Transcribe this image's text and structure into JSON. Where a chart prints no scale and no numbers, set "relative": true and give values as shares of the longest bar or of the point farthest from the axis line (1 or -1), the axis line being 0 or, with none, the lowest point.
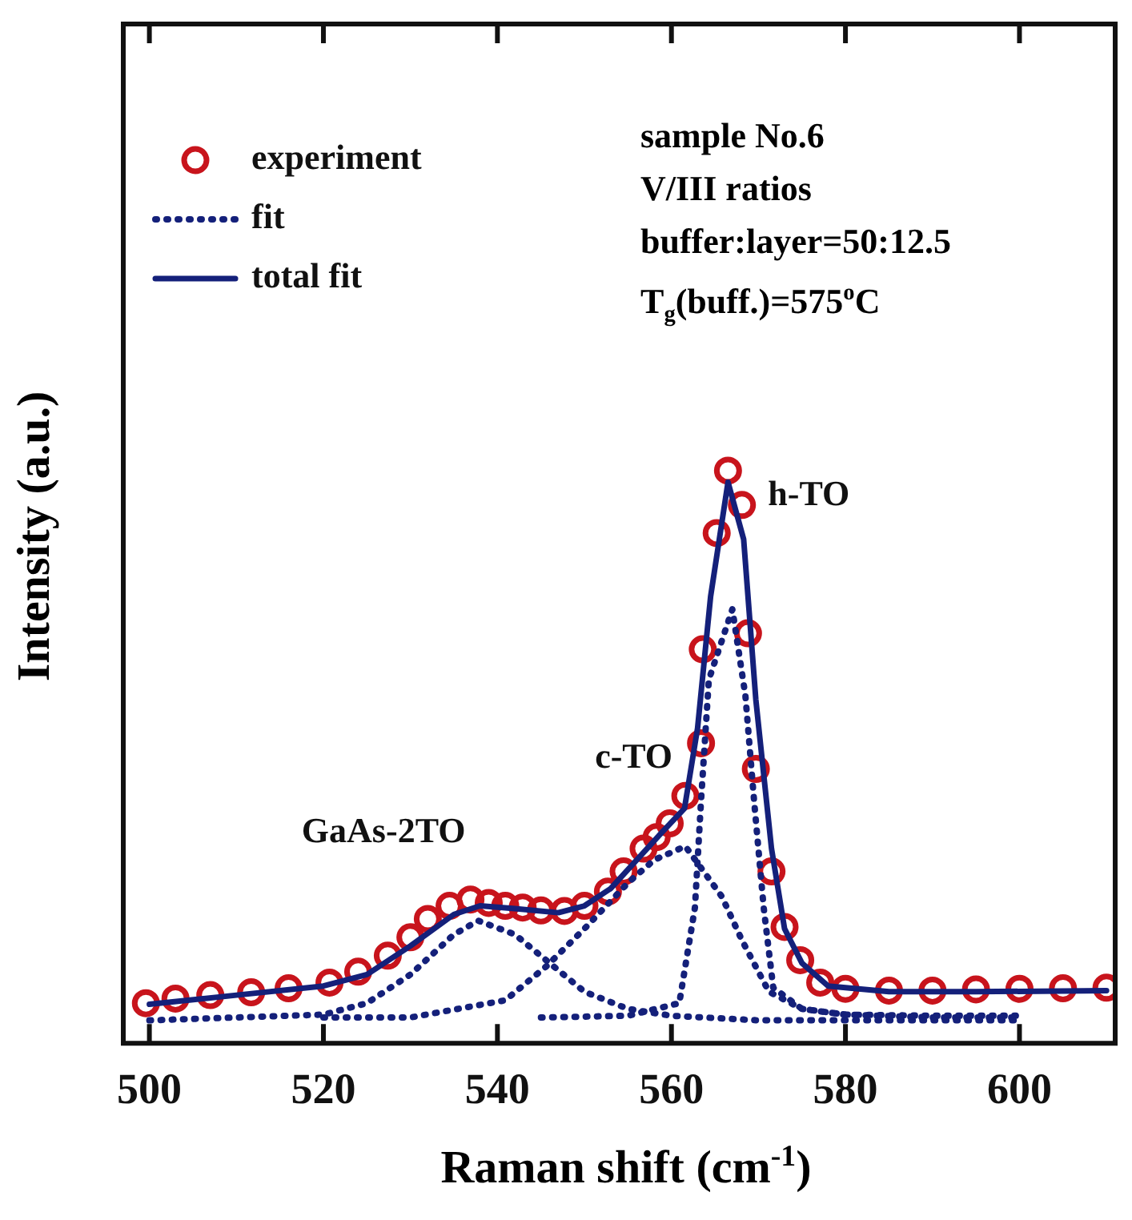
{
  "chart_data": {
    "type": "line",
    "xlabel": "Raman shift (cm$^{-1}$)",
    "ylabel": "Intensity (a.u.)",
    "relative": true,
    "xlim": [
      497,
      611
    ],
    "xticks": [
      500,
      520,
      540,
      560,
      580,
      600
    ],
    "grid": false,
    "legend": "top left",
    "annotations": [
      "sample No.6",
      "V/III ratios",
      "buffer:layer=50:12.5",
      "T$_{g}$(buff.)=575$^{o}$C",
      {
        "text": "GaAs-2TO",
        "x": 537.8,
        "y": 0.214
      },
      {
        "text": "c-TO",
        "x": 561.6,
        "y": 0.344
      },
      {
        "text": "h-TO",
        "x": 566.5,
        "y": 1
      }
    ],
    "series": [
      {
        "name": "experiment",
        "type": "scatter",
        "marker": "circle",
        "color": "#c8141c",
        "x": [
          499.6,
          503,
          507,
          511.7,
          516,
          520.7,
          524,
          527.4,
          530,
          532,
          534.5,
          536.9,
          539,
          540.9,
          542.9,
          545,
          547.7,
          550,
          552.7,
          554.5,
          556.8,
          558.3,
          559.8,
          561.6,
          563.4,
          563.6,
          565.2,
          566.5,
          568.1,
          568.8,
          569.7,
          571.5,
          573,
          574.8,
          577.1,
          580,
          585,
          590,
          595,
          600,
          605,
          610
        ],
        "values": [
          0.07,
          0.078,
          0.084,
          0.089,
          0.096,
          0.106,
          0.125,
          0.153,
          0.185,
          0.217,
          0.24,
          0.251,
          0.245,
          0.24,
          0.237,
          0.232,
          0.231,
          0.24,
          0.265,
          0.3,
          0.34,
          0.36,
          0.384,
          0.432,
          0.524,
          0.688,
          0.891,
          1,
          0.94,
          0.716,
          0.479,
          0.3,
          0.203,
          0.145,
          0.106,
          0.095,
          0.092,
          0.092,
          0.094,
          0.095,
          0.096,
          0.097
        ]
      },
      {
        "name": "fit",
        "line_style": "dotted",
        "marker": "none",
        "color": "#14207a",
        "x": [
          500,
          510,
          520,
          525,
          530,
          535,
          537.8,
          542,
          546,
          550,
          555,
          560,
          570,
          580,
          590,
          600
        ],
        "values": [
          0.04,
          0.045,
          0.05,
          0.07,
          0.12,
          0.19,
          0.214,
          0.19,
          0.14,
          0.09,
          0.06,
          0.048,
          0.04,
          0.04,
          0.04,
          0.04
        ]
      },
      {
        "line_style": "dotted",
        "marker": "none",
        "color": "#14207a",
        "x": [
          520,
          530,
          540.9,
          545.6,
          550,
          555,
          558,
          561.6,
          565.8,
          568.1,
          571.2,
          575,
          580,
          590,
          600
        ],
        "values": [
          0.045,
          0.045,
          0.075,
          0.134,
          0.2,
          0.28,
          0.32,
          0.344,
          0.256,
          0.18,
          0.09,
          0.06,
          0.05,
          0.048,
          0.048
        ]
      },
      {
        "line_style": "dotted",
        "marker": "none",
        "color": "#14207a",
        "x": [
          545,
          555,
          560.9,
          562.7,
          563.4,
          564.3,
          567,
          568.5,
          569.5,
          570.6,
          571.7,
          575,
          580,
          590,
          600
        ],
        "values": [
          0.045,
          0.048,
          0.07,
          0.237,
          0.423,
          0.635,
          0.758,
          0.607,
          0.423,
          0.237,
          0.097,
          0.06,
          0.05,
          0.045,
          0.045
        ]
      },
      {
        "name": "total fit",
        "line_style": "solid",
        "marker": "none",
        "color": "#14207a",
        "x": [
          500,
          510,
          520,
          525,
          530,
          535,
          538,
          542,
          547,
          550,
          553,
          556,
          559,
          561.5,
          563,
          564.5,
          566.5,
          568.3,
          569.7,
          571.5,
          573,
          575,
          578,
          585,
          595,
          610
        ],
        "values": [
          0.068,
          0.084,
          0.1,
          0.12,
          0.17,
          0.225,
          0.24,
          0.235,
          0.228,
          0.24,
          0.27,
          0.32,
          0.37,
          0.41,
          0.55,
          0.78,
          0.98,
          0.88,
          0.6,
          0.34,
          0.2,
          0.14,
          0.1,
          0.09,
          0.09,
          0.092
        ]
      }
    ]
  }
}
